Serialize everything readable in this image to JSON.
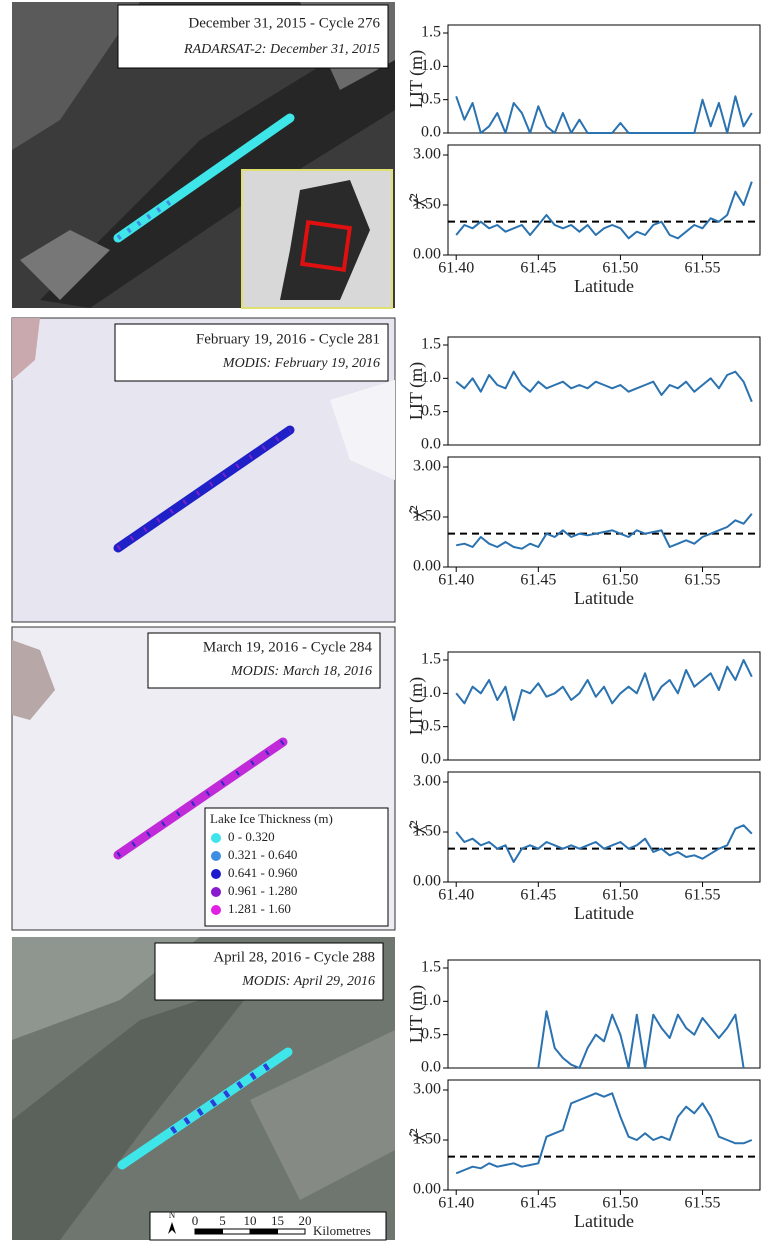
{
  "maps": [
    {
      "title": "December 31, 2015 - Cycle 276",
      "subtitle": "RADARSAT-2: December 31, 2015"
    },
    {
      "title": "February 19, 2016 - Cycle 281",
      "subtitle": "MODIS: February 19, 2016"
    },
    {
      "title": "March 19, 2016 - Cycle 284",
      "subtitle": "MODIS: March 18, 2016",
      "legend": {
        "title": "Lake Ice Thickness (m)",
        "items": [
          {
            "label": "0 - 0.320",
            "color": "#3fe3ea"
          },
          {
            "label": "0.321 - 0.640",
            "color": "#3d8de2"
          },
          {
            "label": "0.641 - 0.960",
            "color": "#1c1cce"
          },
          {
            "label": "0.961 - 1.280",
            "color": "#8a1ccf"
          },
          {
            "label": "1.281 - 1.60",
            "color": "#e020e2"
          }
        ]
      }
    },
    {
      "title": "April 28, 2016 - Cycle 288",
      "subtitle": "MODIS: April 29, 2016",
      "scale_bar": {
        "north": "N",
        "ticks": [
          0,
          5,
          10,
          15,
          20
        ],
        "unit": "Kilometres"
      }
    }
  ],
  "chart_data": [
    {
      "type": "line",
      "ylabel": "LIT (m)",
      "xlim": [
        61.395,
        61.585
      ],
      "ylim": [
        0,
        1.62
      ],
      "yticks": [
        {
          "value": 0,
          "label": "0.0"
        },
        {
          "value": 0.5,
          "label": "0.5"
        },
        {
          "value": 1,
          "label": "1.0"
        },
        {
          "value": 1.5,
          "label": "1.5"
        }
      ],
      "x": [
        61.4,
        61.405,
        61.41,
        61.415,
        61.42,
        61.425,
        61.43,
        61.435,
        61.44,
        61.445,
        61.45,
        61.455,
        61.46,
        61.465,
        61.47,
        61.475,
        61.48,
        61.485,
        61.49,
        61.495,
        61.5,
        61.505,
        61.51,
        61.515,
        61.52,
        61.525,
        61.53,
        61.535,
        61.54,
        61.545,
        61.55,
        61.555,
        61.56,
        61.565,
        61.57,
        61.575,
        61.58
      ],
      "color": "#2a72b0",
      "values": [
        0.55,
        0.2,
        0.45,
        0.0,
        0.1,
        0.3,
        0.0,
        0.45,
        0.3,
        0.0,
        0.4,
        0.1,
        0.0,
        0.3,
        0.0,
        0.2,
        0.0,
        0.0,
        0.0,
        0.0,
        0.15,
        0.0,
        0.0,
        0.0,
        0.0,
        0.0,
        0.0,
        0.0,
        0.0,
        0.0,
        0.5,
        0.1,
        0.45,
        0.0,
        0.55,
        0.1,
        0.3
      ]
    },
    {
      "type": "line",
      "ylabel": "χ̂²",
      "xlabel": "Latitude",
      "xlim": [
        61.395,
        61.585
      ],
      "ylim": [
        0,
        3.3
      ],
      "yticks": [
        {
          "value": 0,
          "label": "0.00"
        },
        {
          "value": 1.5,
          "label": "1.50"
        },
        {
          "value": 3,
          "label": "3.00"
        }
      ],
      "xticks": [
        {
          "value": 61.4,
          "label": "61.40"
        },
        61.45,
        {
          "value": 61.5,
          "label": "61.50"
        },
        61.55
      ],
      "x": [
        61.4,
        61.405,
        61.41,
        61.415,
        61.42,
        61.425,
        61.43,
        61.435,
        61.44,
        61.445,
        61.45,
        61.455,
        61.46,
        61.465,
        61.47,
        61.475,
        61.48,
        61.485,
        61.49,
        61.495,
        61.5,
        61.505,
        61.51,
        61.515,
        61.52,
        61.525,
        61.53,
        61.535,
        61.54,
        61.545,
        61.55,
        61.555,
        61.56,
        61.565,
        61.57,
        61.575,
        61.58
      ],
      "color": "#2a72b0",
      "hline": {
        "value": 1,
        "color": "#000000",
        "dashed": true
      },
      "values": [
        0.6,
        0.9,
        0.8,
        1.0,
        0.8,
        0.9,
        0.7,
        0.8,
        0.9,
        0.6,
        0.9,
        1.2,
        0.9,
        0.8,
        0.9,
        0.7,
        0.9,
        0.6,
        0.8,
        0.9,
        0.8,
        0.5,
        0.7,
        0.6,
        0.9,
        1.0,
        0.6,
        0.5,
        0.7,
        0.9,
        0.8,
        1.1,
        1.0,
        1.2,
        1.9,
        1.5,
        2.2
      ]
    },
    {
      "type": "line",
      "ylabel": "LIT (m)",
      "xlim": [
        61.395,
        61.585
      ],
      "ylim": [
        0,
        1.62
      ],
      "yticks": [
        {
          "value": 0,
          "label": "0.0"
        },
        {
          "value": 0.5,
          "label": "0.5"
        },
        {
          "value": 1,
          "label": "1.0"
        },
        {
          "value": 1.5,
          "label": "1.5"
        }
      ],
      "x": [
        61.4,
        61.405,
        61.41,
        61.415,
        61.42,
        61.425,
        61.43,
        61.435,
        61.44,
        61.445,
        61.45,
        61.455,
        61.46,
        61.465,
        61.47,
        61.475,
        61.48,
        61.485,
        61.49,
        61.495,
        61.5,
        61.505,
        61.51,
        61.515,
        61.52,
        61.525,
        61.53,
        61.535,
        61.54,
        61.545,
        61.55,
        61.555,
        61.56,
        61.565,
        61.57,
        61.575,
        61.58
      ],
      "color": "#2a72b0",
      "values": [
        0.95,
        0.85,
        1.0,
        0.8,
        1.05,
        0.9,
        0.85,
        1.1,
        0.9,
        0.8,
        0.95,
        0.85,
        0.9,
        0.95,
        0.85,
        0.9,
        0.85,
        0.95,
        0.9,
        0.85,
        0.9,
        0.8,
        0.85,
        0.9,
        0.95,
        0.75,
        0.9,
        0.85,
        0.95,
        0.8,
        0.9,
        1.0,
        0.85,
        1.05,
        1.1,
        0.95,
        0.65
      ]
    },
    {
      "type": "line",
      "ylabel": "χ̂²",
      "xlabel": "Latitude",
      "xlim": [
        61.395,
        61.585
      ],
      "ylim": [
        0,
        3.3
      ],
      "yticks": [
        {
          "value": 0,
          "label": "0.00"
        },
        {
          "value": 1.5,
          "label": "1.50"
        },
        {
          "value": 3,
          "label": "3.00"
        }
      ],
      "xticks": [
        {
          "value": 61.4,
          "label": "61.40"
        },
        61.45,
        {
          "value": 61.5,
          "label": "61.50"
        },
        61.55
      ],
      "x": [
        61.4,
        61.405,
        61.41,
        61.415,
        61.42,
        61.425,
        61.43,
        61.435,
        61.44,
        61.445,
        61.45,
        61.455,
        61.46,
        61.465,
        61.47,
        61.475,
        61.48,
        61.485,
        61.49,
        61.495,
        61.5,
        61.505,
        61.51,
        61.515,
        61.52,
        61.525,
        61.53,
        61.535,
        61.54,
        61.545,
        61.55,
        61.555,
        61.56,
        61.565,
        61.57,
        61.575,
        61.58
      ],
      "color": "#2a72b0",
      "hline": {
        "value": 1,
        "color": "#000000",
        "dashed": true
      },
      "values": [
        0.65,
        0.7,
        0.6,
        0.9,
        0.7,
        0.6,
        0.75,
        0.6,
        0.55,
        0.7,
        0.6,
        1.0,
        0.9,
        1.1,
        0.9,
        1.0,
        0.95,
        1.0,
        1.05,
        1.1,
        1.0,
        0.9,
        1.1,
        1.0,
        1.05,
        1.1,
        0.6,
        0.7,
        0.8,
        0.7,
        0.9,
        1.0,
        1.1,
        1.2,
        1.4,
        1.3,
        1.6
      ]
    },
    {
      "type": "line",
      "ylabel": "LIT (m)",
      "xlim": [
        61.395,
        61.585
      ],
      "ylim": [
        0,
        1.62
      ],
      "yticks": [
        {
          "value": 0,
          "label": "0.0"
        },
        {
          "value": 0.5,
          "label": "0.5"
        },
        {
          "value": 1,
          "label": "1.0"
        },
        {
          "value": 1.5,
          "label": "1.5"
        }
      ],
      "x": [
        61.4,
        61.405,
        61.41,
        61.415,
        61.42,
        61.425,
        61.43,
        61.435,
        61.44,
        61.445,
        61.45,
        61.455,
        61.46,
        61.465,
        61.47,
        61.475,
        61.48,
        61.485,
        61.49,
        61.495,
        61.5,
        61.505,
        61.51,
        61.515,
        61.52,
        61.525,
        61.53,
        61.535,
        61.54,
        61.545,
        61.55,
        61.555,
        61.56,
        61.565,
        61.57,
        61.575,
        61.58
      ],
      "color": "#2a72b0",
      "values": [
        1.0,
        0.85,
        1.1,
        1.0,
        1.2,
        0.9,
        1.1,
        0.6,
        1.05,
        1.0,
        1.15,
        0.95,
        1.0,
        1.1,
        0.9,
        1.0,
        1.2,
        0.95,
        1.1,
        0.85,
        1.0,
        1.1,
        1.0,
        1.3,
        0.9,
        1.1,
        1.2,
        1.0,
        1.35,
        1.1,
        1.2,
        1.3,
        1.05,
        1.4,
        1.2,
        1.5,
        1.25
      ]
    },
    {
      "type": "line",
      "ylabel": "χ̂²",
      "xlabel": "Latitude",
      "xlim": [
        61.395,
        61.585
      ],
      "ylim": [
        0,
        3.3
      ],
      "yticks": [
        {
          "value": 0,
          "label": "0.00"
        },
        {
          "value": 1.5,
          "label": "1.50"
        },
        {
          "value": 3,
          "label": "3.00"
        }
      ],
      "xticks": [
        {
          "value": 61.4,
          "label": "61.40"
        },
        61.45,
        {
          "value": 61.5,
          "label": "61.50"
        },
        61.55
      ],
      "x": [
        61.4,
        61.405,
        61.41,
        61.415,
        61.42,
        61.425,
        61.43,
        61.435,
        61.44,
        61.445,
        61.45,
        61.455,
        61.46,
        61.465,
        61.47,
        61.475,
        61.48,
        61.485,
        61.49,
        61.495,
        61.5,
        61.505,
        61.51,
        61.515,
        61.52,
        61.525,
        61.53,
        61.535,
        61.54,
        61.545,
        61.55,
        61.555,
        61.56,
        61.565,
        61.57,
        61.575,
        61.58
      ],
      "color": "#2a72b0",
      "hline": {
        "value": 1,
        "color": "#000000",
        "dashed": true
      },
      "values": [
        1.5,
        1.2,
        1.3,
        1.1,
        1.2,
        1.0,
        1.1,
        0.6,
        1.0,
        1.1,
        1.0,
        1.2,
        1.1,
        1.0,
        1.1,
        1.0,
        1.1,
        1.2,
        1.0,
        1.1,
        1.2,
        1.0,
        1.1,
        1.3,
        0.9,
        1.0,
        0.8,
        0.9,
        0.75,
        0.8,
        0.7,
        0.85,
        1.0,
        1.1,
        1.6,
        1.7,
        1.45
      ]
    },
    {
      "type": "line",
      "ylabel": "LIT (m)",
      "xlim": [
        61.395,
        61.585
      ],
      "ylim": [
        0,
        1.62
      ],
      "yticks": [
        {
          "value": 0,
          "label": "0.0"
        },
        {
          "value": 0.5,
          "label": "0.5"
        },
        {
          "value": 1,
          "label": "1.0"
        },
        {
          "value": 1.5,
          "label": "1.5"
        }
      ],
      "x": [
        61.4,
        61.405,
        61.41,
        61.415,
        61.42,
        61.425,
        61.43,
        61.435,
        61.44,
        61.445,
        61.45,
        61.455,
        61.46,
        61.465,
        61.47,
        61.475,
        61.48,
        61.485,
        61.49,
        61.495,
        61.5,
        61.505,
        61.51,
        61.515,
        61.52,
        61.525,
        61.53,
        61.535,
        61.54,
        61.545,
        61.55,
        61.555,
        61.56,
        61.565,
        61.57,
        61.575,
        61.58
      ],
      "color": "#2a72b0",
      "values": [
        null,
        null,
        null,
        null,
        null,
        null,
        null,
        null,
        null,
        null,
        0.0,
        0.85,
        0.3,
        0.15,
        0.05,
        0.0,
        0.3,
        0.5,
        0.4,
        0.8,
        0.5,
        0.0,
        0.8,
        0.0,
        0.8,
        0.6,
        0.45,
        0.8,
        0.6,
        0.5,
        0.75,
        0.6,
        0.45,
        0.6,
        0.8,
        0.0,
        null
      ]
    },
    {
      "type": "line",
      "ylabel": "χ̂²",
      "xlabel": "Latitude",
      "xlim": [
        61.395,
        61.585
      ],
      "ylim": [
        0,
        3.3
      ],
      "yticks": [
        {
          "value": 0,
          "label": "0.00"
        },
        {
          "value": 1.5,
          "label": "1.50"
        },
        {
          "value": 3,
          "label": "3.00"
        }
      ],
      "xticks": [
        {
          "value": 61.4,
          "label": "61.40"
        },
        61.45,
        {
          "value": 61.5,
          "label": "61.50"
        },
        61.55
      ],
      "x": [
        61.4,
        61.405,
        61.41,
        61.415,
        61.42,
        61.425,
        61.43,
        61.435,
        61.44,
        61.445,
        61.45,
        61.455,
        61.46,
        61.465,
        61.47,
        61.475,
        61.48,
        61.485,
        61.49,
        61.495,
        61.5,
        61.505,
        61.51,
        61.515,
        61.52,
        61.525,
        61.53,
        61.535,
        61.54,
        61.545,
        61.55,
        61.555,
        61.56,
        61.565,
        61.57,
        61.575,
        61.58
      ],
      "color": "#2a72b0",
      "hline": {
        "value": 1,
        "color": "#000000",
        "dashed": true
      },
      "values": [
        0.5,
        0.6,
        0.7,
        0.65,
        0.8,
        0.7,
        0.75,
        0.8,
        0.7,
        0.75,
        0.8,
        1.6,
        1.7,
        1.8,
        2.6,
        2.7,
        2.8,
        2.9,
        2.8,
        2.9,
        2.2,
        1.6,
        1.5,
        1.7,
        1.5,
        1.6,
        1.5,
        2.2,
        2.5,
        2.3,
        2.6,
        2.2,
        1.6,
        1.5,
        1.4,
        1.4,
        1.5
      ]
    }
  ]
}
